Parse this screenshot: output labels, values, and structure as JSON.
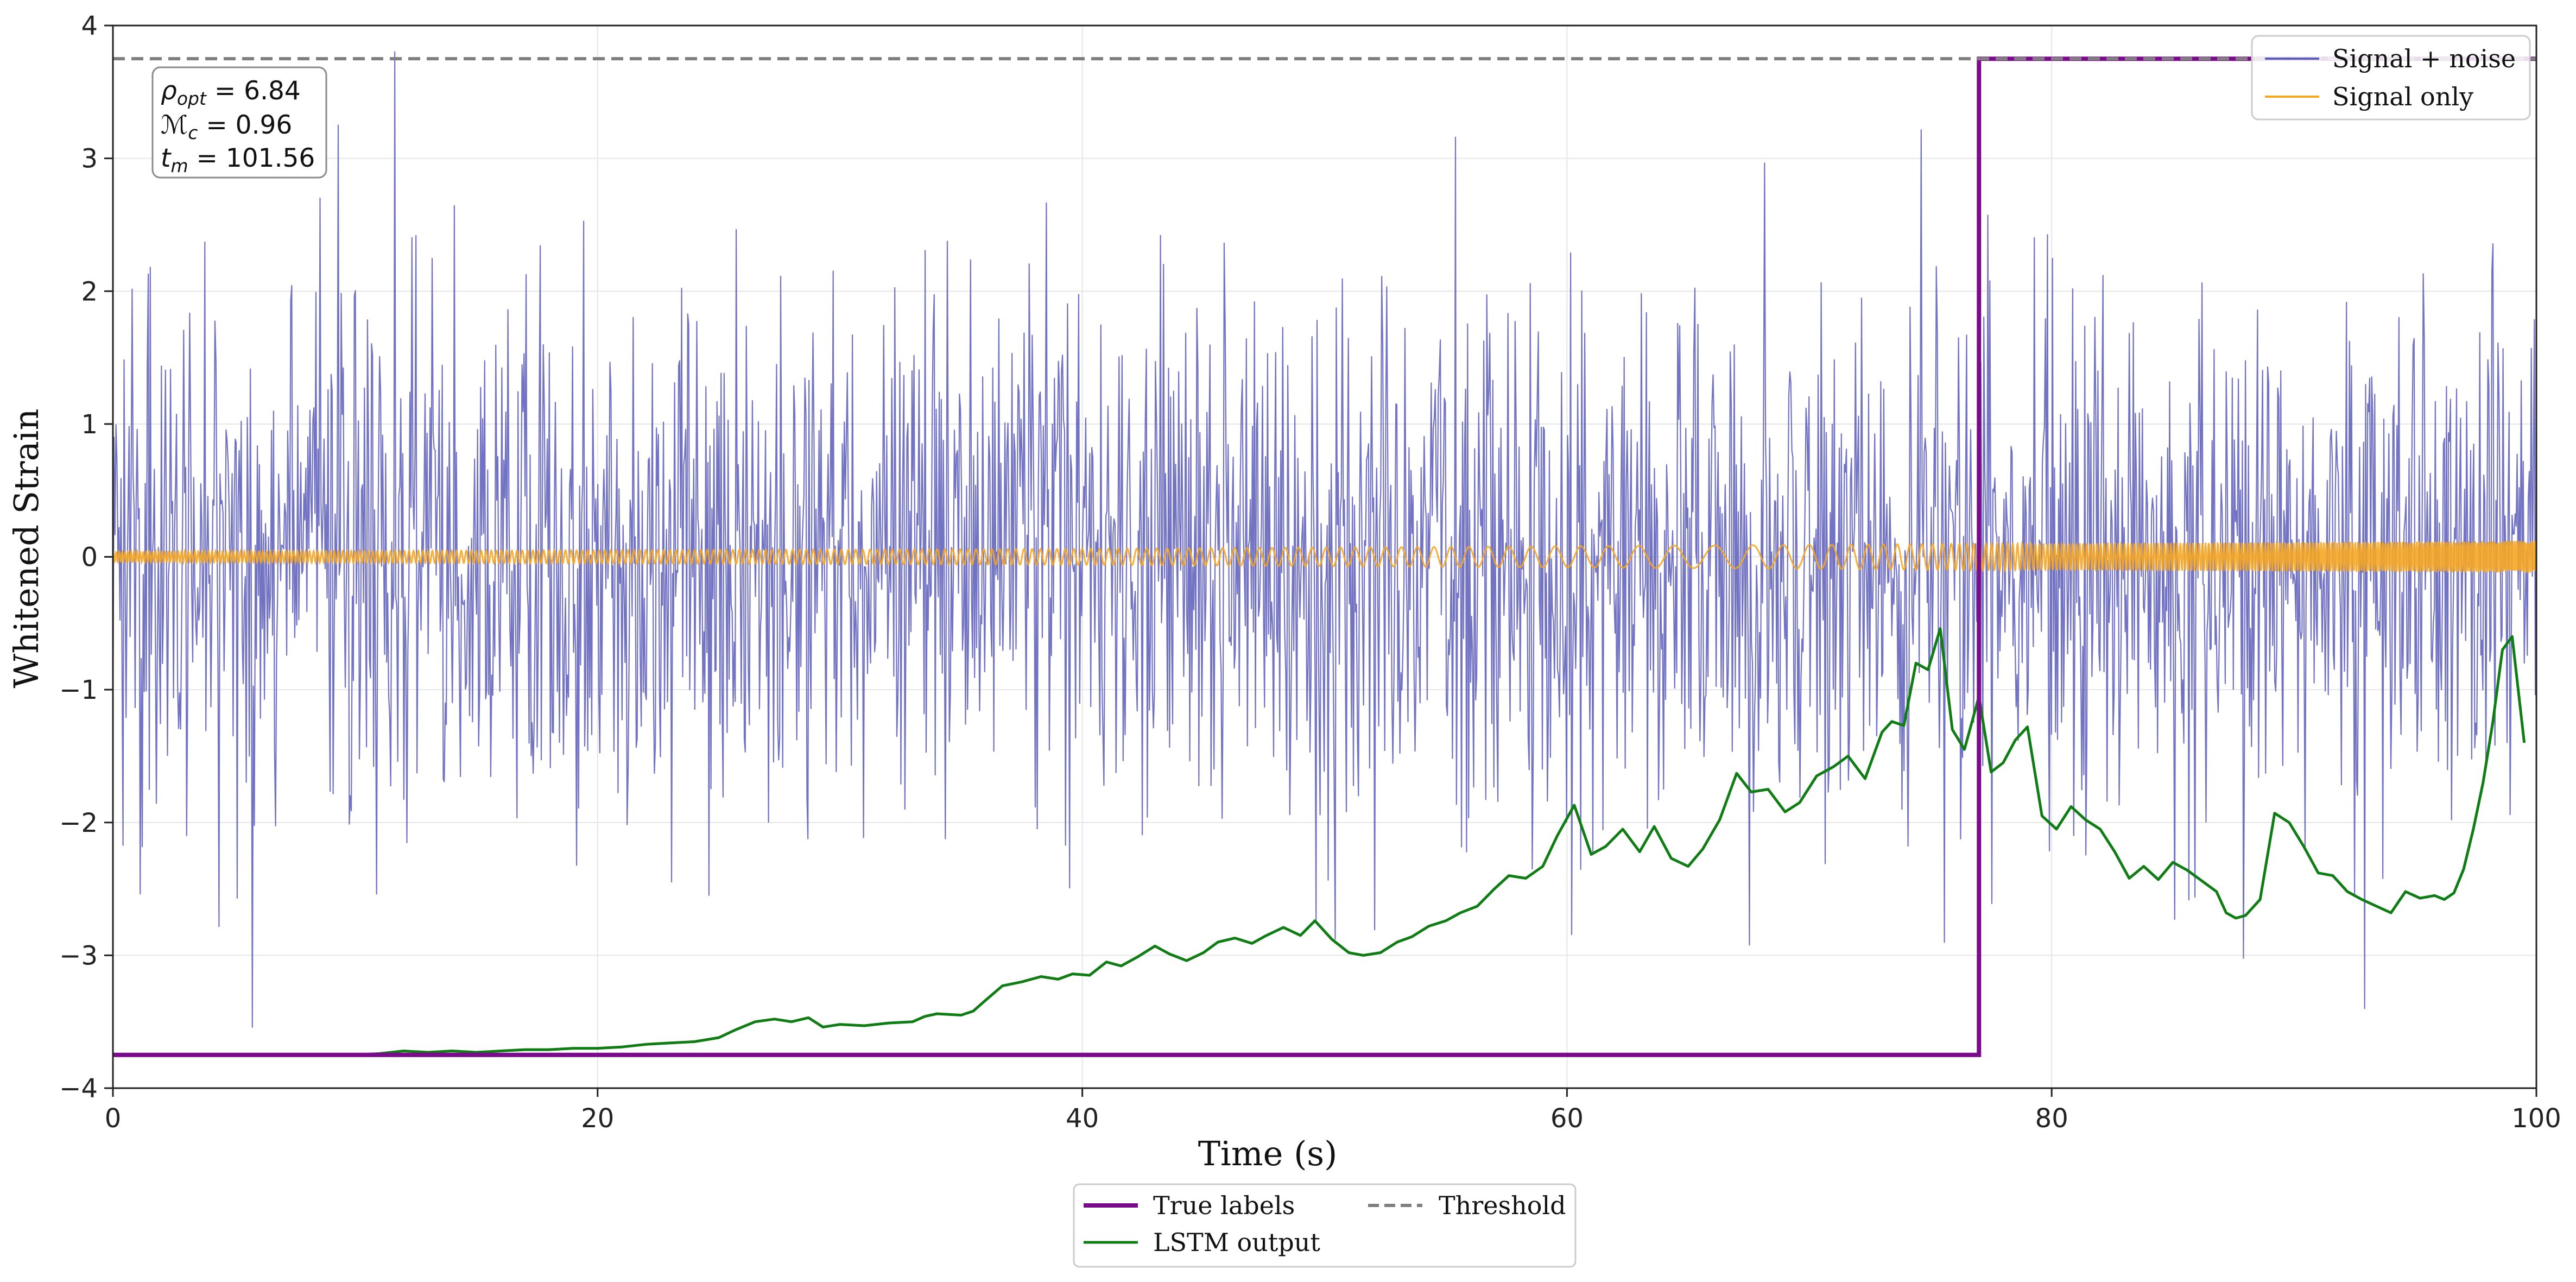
{
  "chart_data": {
    "type": "line",
    "title": "",
    "xlabel": "Time (s)",
    "ylabel": "Whitened Strain",
    "xlim": [
      0,
      100
    ],
    "ylim": [
      -4,
      4
    ],
    "x_ticks": [
      0,
      20,
      40,
      60,
      80,
      100
    ],
    "y_ticks": [
      -4,
      -3,
      -2,
      -1,
      0,
      1,
      2,
      3,
      4
    ],
    "grid": true,
    "annotation": {
      "rho_symbol": "ρ",
      "rho_sub": "opt",
      "rho_value": " = 6.84",
      "mc_symbol": "ℳ",
      "mc_sub": "c",
      "mc_value": " = 0.96",
      "tm_symbol": "t",
      "tm_sub": "m",
      "tm_value": " = 101.56"
    },
    "upper_legend": [
      {
        "label": "Signal + noise",
        "color": "#5b5bb8"
      },
      {
        "label": "Signal only",
        "color": "#f5a623"
      }
    ],
    "lower_legend": [
      {
        "label": "True labels",
        "color": "#7b0a8c"
      },
      {
        "label": "LSTM output",
        "color": "#0f7d14"
      },
      {
        "label": "Threshold",
        "color": "#7f7f7f"
      }
    ],
    "series": [
      {
        "name": "Signal + noise",
        "color": "#5b5bb8",
        "style": "noise",
        "sigma": 1.0,
        "samples": 2400
      },
      {
        "name": "Signal only",
        "color": "#f5a623",
        "style": "chirp",
        "envelope": [
          [
            0,
            0.04
          ],
          [
            40,
            0.06
          ],
          [
            60,
            0.08
          ],
          [
            70,
            0.09
          ],
          [
            77,
            0.1
          ],
          [
            80,
            0.1
          ],
          [
            100,
            0.12
          ]
        ],
        "period": [
          [
            0,
            0.12
          ],
          [
            40,
            0.35
          ],
          [
            55,
            0.7
          ],
          [
            62,
            1.2
          ],
          [
            66,
            1.8
          ],
          [
            68,
            1.3
          ],
          [
            72,
            0.7
          ],
          [
            77,
            0.25
          ],
          [
            80,
            0.15
          ],
          [
            100,
            0.08
          ]
        ]
      },
      {
        "name": "True labels",
        "color": "#7b0a8c",
        "style": "step",
        "x": [
          0,
          77,
          77,
          100
        ],
        "y": [
          -3.75,
          -3.75,
          3.75,
          3.75
        ]
      },
      {
        "name": "LSTM output",
        "color": "#0f7d14",
        "style": "line",
        "x": [
          0,
          5,
          10,
          11,
          12,
          13,
          14,
          15,
          16,
          17,
          18,
          19,
          20,
          21,
          22,
          23,
          24,
          25,
          25.7,
          26.5,
          27.3,
          28,
          28.7,
          29.3,
          30,
          31,
          32,
          33,
          33.5,
          34,
          35,
          35.5,
          36,
          36.7,
          37.5,
          38.3,
          39,
          39.6,
          40.3,
          41,
          41.6,
          42.3,
          43,
          43.6,
          44.3,
          45,
          45.6,
          46.3,
          47,
          47.6,
          48.3,
          49,
          49.6,
          50.3,
          51,
          51.6,
          52.3,
          53,
          53.6,
          54.3,
          55,
          55.6,
          56.3,
          57,
          57.6,
          58.3,
          59,
          59.6,
          60.3,
          61,
          61.6,
          62.3,
          63,
          63.6,
          64.3,
          65,
          65.6,
          66.3,
          67,
          67.6,
          68.3,
          69,
          69.6,
          70.3,
          71,
          71.6,
          72.3,
          73,
          73.4,
          73.9,
          74.4,
          74.9,
          75.4,
          75.9,
          76.4,
          77,
          77.5,
          78,
          78.5,
          79,
          79.6,
          80.2,
          80.8,
          81.4,
          82,
          82.6,
          83.2,
          83.8,
          84.4,
          85,
          85.6,
          86.2,
          86.8,
          87.2,
          87.6,
          88,
          88.6,
          89.2,
          89.8,
          90.4,
          91,
          91.6,
          92.2,
          92.8,
          93.4,
          94,
          94.6,
          95.2,
          95.8,
          96.2,
          96.6,
          97,
          97.4,
          97.8,
          98.2,
          98.6,
          99,
          99.5
        ]
      }
    ]
  }
}
